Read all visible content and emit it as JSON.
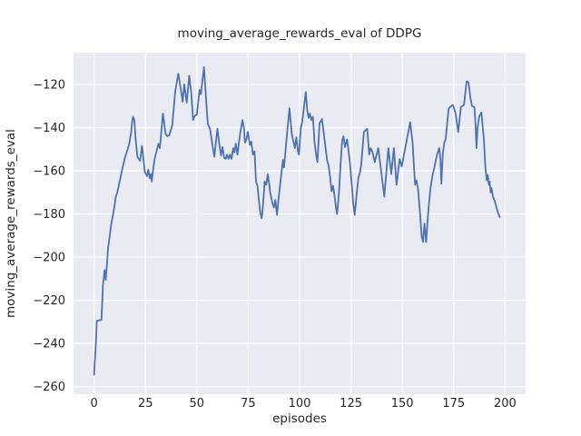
{
  "chart_data": {
    "type": "line",
    "title": "moving_average_rewards_eval of DDPG",
    "xlabel": "episodes",
    "ylabel": "moving_average_rewards_eval",
    "xlim": [
      -10,
      210
    ],
    "ylim": [
      -263.5,
      -105.3
    ],
    "xticks": [
      0,
      25,
      50,
      75,
      100,
      125,
      150,
      175,
      200
    ],
    "yticks": [
      -120,
      -140,
      -160,
      -180,
      -200,
      -220,
      -240,
      -260
    ],
    "grid": true,
    "legend_position": "none",
    "plot_bg_color": "#eaeaf2",
    "grid_color": "#ffffff",
    "text_color": "#262626",
    "series": [
      {
        "name": "moving_average_rewards_eval",
        "color": "#4c72b0",
        "points": [
          [
            0,
            -254.5
          ],
          [
            0.9,
            -239.5
          ],
          [
            1.3,
            -229.5
          ],
          [
            3.6,
            -229
          ],
          [
            4.3,
            -213
          ],
          [
            5.1,
            -206
          ],
          [
            5.7,
            -210.5
          ],
          [
            6.1,
            -206
          ],
          [
            6.8,
            -196
          ],
          [
            7.6,
            -190.5
          ],
          [
            8.3,
            -185
          ],
          [
            9.5,
            -179
          ],
          [
            10.6,
            -172
          ],
          [
            11.3,
            -170
          ],
          [
            12.1,
            -166.5
          ],
          [
            13.1,
            -162
          ],
          [
            14,
            -158
          ],
          [
            15,
            -154
          ],
          [
            16,
            -151
          ],
          [
            17,
            -148
          ],
          [
            18,
            -142.5
          ],
          [
            18.5,
            -137.5
          ],
          [
            19,
            -135
          ],
          [
            19.6,
            -136.5
          ],
          [
            20.2,
            -145.5
          ],
          [
            21.1,
            -153.5
          ],
          [
            22.4,
            -155.5
          ],
          [
            23.3,
            -148.5
          ],
          [
            24,
            -154.5
          ],
          [
            24.7,
            -160.5
          ],
          [
            25.8,
            -162.5
          ],
          [
            26.4,
            -159.5
          ],
          [
            27.1,
            -163.5
          ],
          [
            27.7,
            -161.5
          ],
          [
            28.1,
            -165
          ],
          [
            28.9,
            -158
          ],
          [
            29.6,
            -154
          ],
          [
            31.3,
            -147.5
          ],
          [
            32,
            -149.5
          ],
          [
            33.5,
            -133.5
          ],
          [
            34.8,
            -143
          ],
          [
            35.7,
            -144
          ],
          [
            36.6,
            -143.5
          ],
          [
            38,
            -139
          ],
          [
            39.5,
            -123
          ],
          [
            41,
            -115
          ],
          [
            42,
            -121
          ],
          [
            43.1,
            -128
          ],
          [
            43.9,
            -120
          ],
          [
            45.1,
            -128.5
          ],
          [
            46.3,
            -116
          ],
          [
            47.3,
            -124
          ],
          [
            48.2,
            -136.5
          ],
          [
            49,
            -134.5
          ],
          [
            50,
            -134
          ],
          [
            51.3,
            -122.5
          ],
          [
            52,
            -124.5
          ],
          [
            53.5,
            -112
          ],
          [
            54.9,
            -132.5
          ],
          [
            55.4,
            -138.5
          ],
          [
            56.4,
            -140.5
          ],
          [
            58,
            -150.5
          ],
          [
            58.5,
            -153.5
          ],
          [
            60,
            -140.5
          ],
          [
            61,
            -148
          ],
          [
            61.8,
            -153
          ],
          [
            62.5,
            -149
          ],
          [
            63.3,
            -154
          ],
          [
            64,
            -154.5
          ],
          [
            64.7,
            -152.5
          ],
          [
            65.4,
            -154.5
          ],
          [
            66.2,
            -152.5
          ],
          [
            66.9,
            -154.5
          ],
          [
            67.7,
            -149.5
          ],
          [
            68.3,
            -151.5
          ],
          [
            69,
            -147.5
          ],
          [
            69.8,
            -152.5
          ],
          [
            70.5,
            -147
          ],
          [
            71.2,
            -142
          ],
          [
            72.2,
            -136.5
          ],
          [
            72.9,
            -140
          ],
          [
            73.4,
            -147
          ],
          [
            74.1,
            -145.5
          ],
          [
            74.8,
            -142
          ],
          [
            75.8,
            -148
          ],
          [
            76.5,
            -146.5
          ],
          [
            77.3,
            -152.5
          ],
          [
            78.1,
            -151
          ],
          [
            78.8,
            -165
          ],
          [
            79.5,
            -167
          ],
          [
            80.8,
            -179
          ],
          [
            81.6,
            -182
          ],
          [
            82.3,
            -175
          ],
          [
            83,
            -165
          ],
          [
            83.8,
            -166.5
          ],
          [
            84.5,
            -161.5
          ],
          [
            85.3,
            -166.5
          ],
          [
            85.7,
            -170
          ],
          [
            86.8,
            -175
          ],
          [
            87.5,
            -177
          ],
          [
            88.2,
            -173.5
          ],
          [
            89,
            -180.5
          ],
          [
            89.7,
            -173.5
          ],
          [
            91.2,
            -160.8
          ],
          [
            91.9,
            -155
          ],
          [
            92.4,
            -158.5
          ],
          [
            93.4,
            -148
          ],
          [
            94.1,
            -141
          ],
          [
            95.1,
            -131
          ],
          [
            96.2,
            -143
          ],
          [
            97.7,
            -149.5
          ],
          [
            98.4,
            -144.5
          ],
          [
            99.2,
            -151
          ],
          [
            99.7,
            -152.5
          ],
          [
            100.6,
            -140
          ],
          [
            101.3,
            -137.5
          ],
          [
            103,
            -123.5
          ],
          [
            103.7,
            -132
          ],
          [
            104.4,
            -135.5
          ],
          [
            105,
            -133.5
          ],
          [
            105.7,
            -136.5
          ],
          [
            106.5,
            -135
          ],
          [
            107.3,
            -147
          ],
          [
            108.1,
            -152.5
          ],
          [
            108.7,
            -156
          ],
          [
            109.7,
            -138
          ],
          [
            110.9,
            -136
          ],
          [
            112.6,
            -149
          ],
          [
            113.4,
            -155
          ],
          [
            114.1,
            -157.5
          ],
          [
            114.9,
            -163
          ],
          [
            115.6,
            -169.5
          ],
          [
            116.3,
            -167
          ],
          [
            117,
            -171.5
          ],
          [
            117.8,
            -178
          ],
          [
            118.3,
            -180
          ],
          [
            119.2,
            -169.5
          ],
          [
            119.9,
            -158
          ],
          [
            120.7,
            -146
          ],
          [
            121.4,
            -144
          ],
          [
            122.1,
            -149
          ],
          [
            123.1,
            -145.5
          ],
          [
            123.8,
            -150.5
          ],
          [
            124.5,
            -156.5
          ],
          [
            125.4,
            -166.5
          ],
          [
            126.1,
            -175
          ],
          [
            126.8,
            -180.5
          ],
          [
            127.9,
            -169.5
          ],
          [
            128.6,
            -163.5
          ],
          [
            129.3,
            -161
          ],
          [
            129.9,
            -158
          ],
          [
            131.3,
            -142
          ],
          [
            132.9,
            -140.5
          ],
          [
            133.9,
            -152.5
          ],
          [
            134.6,
            -149.5
          ],
          [
            135.4,
            -151
          ],
          [
            136.6,
            -156
          ],
          [
            138.3,
            -149.5
          ],
          [
            139.8,
            -161
          ],
          [
            141.2,
            -172
          ],
          [
            143.2,
            -149.5
          ],
          [
            144.6,
            -161.5
          ],
          [
            145.9,
            -149.5
          ],
          [
            147.2,
            -166.5
          ],
          [
            148.7,
            -154.5
          ],
          [
            149.7,
            -158
          ],
          [
            151.5,
            -149
          ],
          [
            153.8,
            -137.5
          ],
          [
            155,
            -147
          ],
          [
            156.2,
            -166.5
          ],
          [
            156.9,
            -164.5
          ],
          [
            157.6,
            -168
          ],
          [
            158.6,
            -179
          ],
          [
            159.4,
            -190.5
          ],
          [
            160.1,
            -193
          ],
          [
            160.8,
            -184.5
          ],
          [
            161.6,
            -193
          ],
          [
            162.6,
            -179
          ],
          [
            163.7,
            -168
          ],
          [
            164.7,
            -162
          ],
          [
            165.7,
            -158
          ],
          [
            166.9,
            -152.5
          ],
          [
            168,
            -149.5
          ],
          [
            168.5,
            -154.5
          ],
          [
            169,
            -166
          ],
          [
            169.7,
            -152
          ],
          [
            170.4,
            -147
          ],
          [
            171.1,
            -145.5
          ],
          [
            172.5,
            -131.5
          ],
          [
            173.2,
            -130.5
          ],
          [
            174.6,
            -129.5
          ],
          [
            175.8,
            -133
          ],
          [
            177.2,
            -142
          ],
          [
            178.5,
            -130.5
          ],
          [
            180,
            -129.5
          ],
          [
            181.3,
            -118.5
          ],
          [
            182.2,
            -119
          ],
          [
            183.1,
            -126
          ],
          [
            183.9,
            -130
          ],
          [
            185.1,
            -130.5
          ],
          [
            185.6,
            -138.5
          ],
          [
            186.1,
            -149.5
          ],
          [
            186.6,
            -140.5
          ],
          [
            187.4,
            -135
          ],
          [
            188.5,
            -133
          ],
          [
            189.7,
            -145.5
          ],
          [
            190.4,
            -158
          ],
          [
            191.1,
            -164.5
          ],
          [
            191.6,
            -162
          ],
          [
            192.1,
            -166.5
          ],
          [
            192.5,
            -165
          ],
          [
            193,
            -170
          ],
          [
            193.4,
            -168
          ],
          [
            194.1,
            -172
          ],
          [
            195,
            -174
          ],
          [
            196.4,
            -179
          ],
          [
            197.4,
            -181.5
          ]
        ]
      }
    ]
  }
}
